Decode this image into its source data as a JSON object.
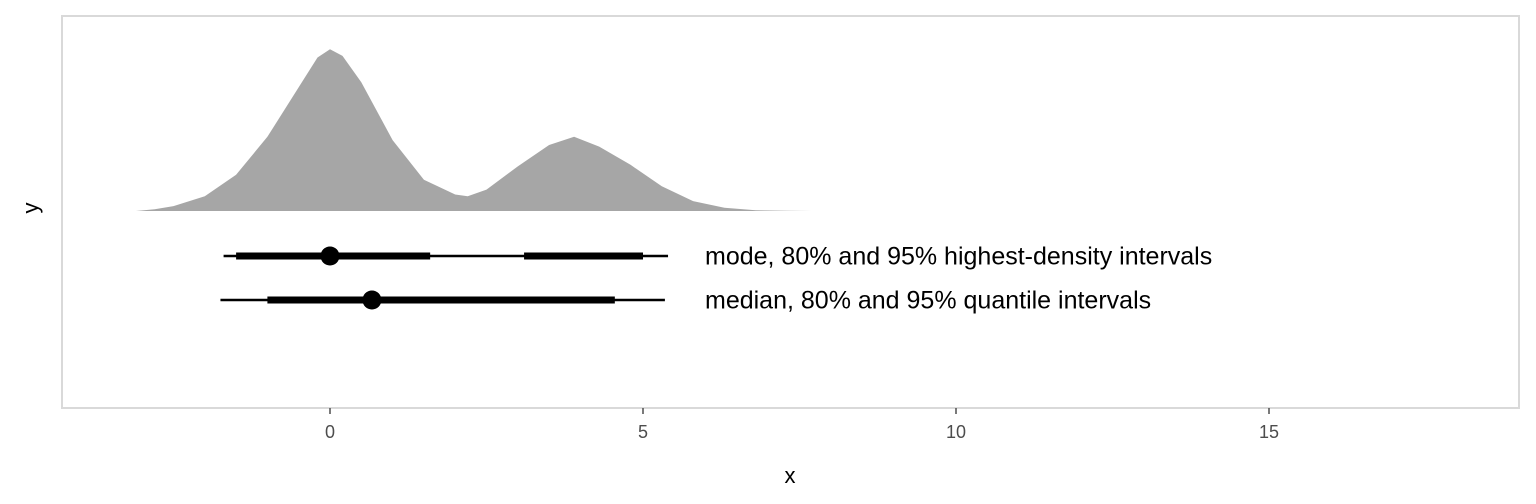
{
  "chart_data": {
    "type": "area",
    "xlabel": "x",
    "ylabel": "y",
    "xlim": [
      -4.3,
      19.1
    ],
    "x_ticks": [
      0,
      5,
      10,
      15
    ],
    "x_tick_labels": [
      "0",
      "5",
      "10",
      "15"
    ],
    "grid": false,
    "colors": {
      "density_fill": "#a6a6a6",
      "interval": "#000000",
      "panel_border": "#d9d9d9",
      "tick": "#4d4d4d"
    },
    "density": {
      "x": [
        -3.1,
        -2.8,
        -2.5,
        -2.0,
        -1.5,
        -1.0,
        -0.5,
        -0.2,
        0.0,
        0.2,
        0.5,
        1.0,
        1.5,
        2.0,
        2.2,
        2.5,
        3.0,
        3.5,
        3.9,
        4.3,
        4.8,
        5.3,
        5.8,
        6.3,
        6.8,
        7.3,
        7.7
      ],
      "density": [
        0.0,
        0.01,
        0.03,
        0.09,
        0.22,
        0.45,
        0.75,
        0.93,
        0.98,
        0.94,
        0.78,
        0.43,
        0.19,
        0.1,
        0.09,
        0.13,
        0.27,
        0.4,
        0.45,
        0.39,
        0.28,
        0.15,
        0.06,
        0.02,
        0.005,
        0.001,
        0.0
      ]
    },
    "intervals": [
      {
        "point": 0.0,
        "inner_80": [
          [
            -1.5,
            1.6
          ],
          [
            3.1,
            5.0
          ]
        ],
        "outer_95": [
          [
            -1.7,
            5.4
          ]
        ],
        "label": "mode, 80% and 95% highest-density intervals"
      },
      {
        "point": 0.67,
        "inner_80": [
          [
            -1.0,
            4.55
          ]
        ],
        "outer_95": [
          [
            -1.75,
            5.35
          ]
        ],
        "label": "median, 80% and 95% quantile intervals"
      }
    ]
  }
}
